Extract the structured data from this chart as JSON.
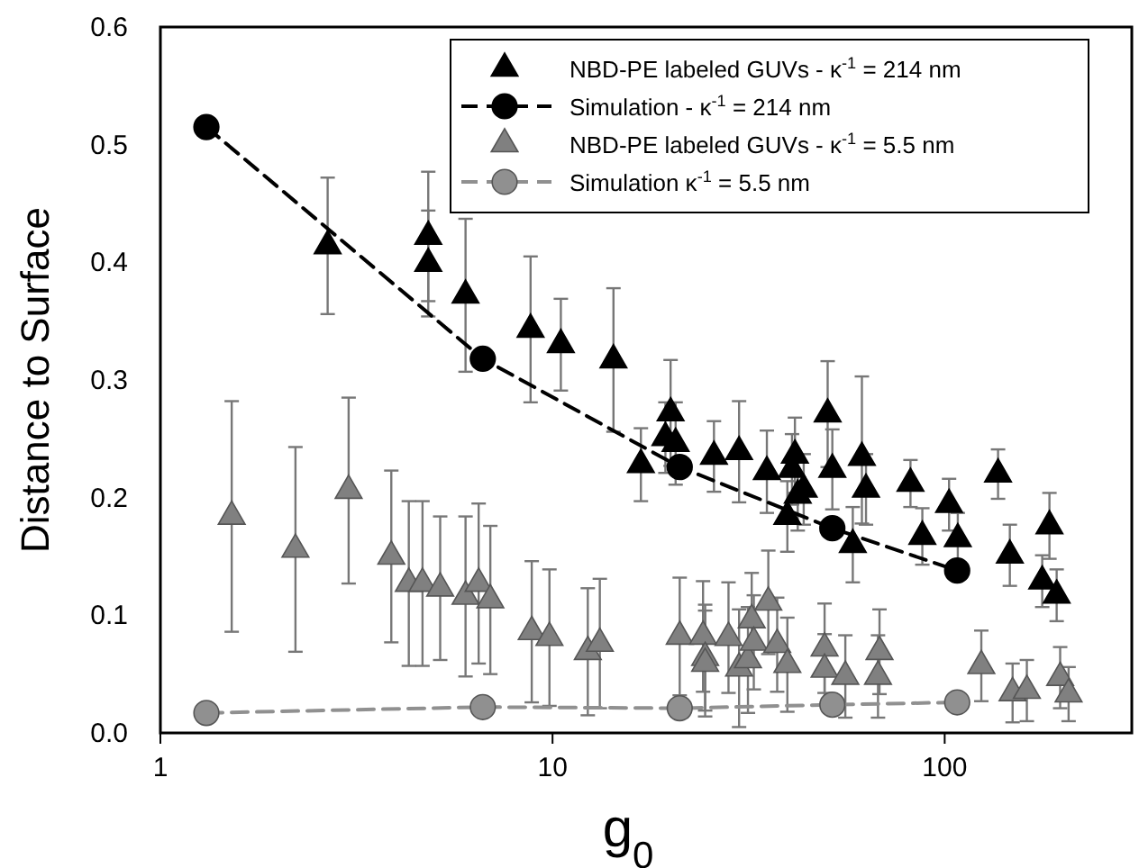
{
  "chart_data": {
    "type": "scatter",
    "xlabel": "g$_{0}$",
    "ylabel": "Distance to Surface",
    "log": "x",
    "xlim": [
      1,
      300
    ],
    "xticks": [
      1,
      10,
      100
    ],
    "ylim": [
      0,
      0.6
    ],
    "yticks": [
      {
        "value": 0,
        "label": "0.0"
      },
      {
        "value": 0.1,
        "label": "0.1"
      },
      {
        "value": 0.2,
        "label": "0.2"
      },
      {
        "value": 0.3,
        "label": "0.3"
      },
      {
        "value": 0.4,
        "label": "0.4"
      },
      {
        "value": 0.5,
        "label": "0.5"
      },
      {
        "value": 0.6,
        "label": "0.6"
      }
    ],
    "grid": false,
    "legend": "top right",
    "series": [
      {
        "name": "NBD-PE labeled GUVs - κ$^{-1}$ = 214 nm",
        "marker": "triangle",
        "color": "#000000",
        "x": [
          2.67,
          4.82,
          4.82,
          6.0,
          8.79,
          10.5,
          14.3,
          16.8,
          19.4,
          20.0,
          20.6,
          25.8,
          29.9,
          35.2,
          39.7,
          40.8,
          41.5,
          42.2,
          43.7,
          50.3,
          51.7,
          58.3,
          61.5,
          63.0,
          81.8,
          87.7,
          102.6,
          108,
          136.8,
          146.6,
          177.3,
          185,
          193
        ],
        "values": [
          0.414,
          0.422,
          0.399,
          0.372,
          0.343,
          0.33,
          0.317,
          0.228,
          0.251,
          0.272,
          0.246,
          0.235,
          0.239,
          0.222,
          0.184,
          0.224,
          0.236,
          0.202,
          0.207,
          0.271,
          0.224,
          0.16,
          0.234,
          0.207,
          0.212,
          0.167,
          0.194,
          0.165,
          0.22,
          0.151,
          0.129,
          0.176,
          0.117
        ],
        "errors": [
          0.058,
          0.055,
          0.045,
          0.065,
          0.062,
          0.039,
          0.061,
          0.031,
          0.03,
          0.045,
          0.035,
          0.03,
          0.043,
          0.035,
          0.03,
          0.03,
          0.032,
          0.03,
          0.03,
          0.045,
          0.034,
          0.032,
          [
            0.178,
            0.303
          ],
          0.03,
          0.02,
          0.024,
          0.022,
          0.022,
          0.021,
          0.026,
          0.022,
          0.028,
          0.022
        ]
      },
      {
        "name": "Simulation - κ$^{-1}$ = 214 nm",
        "type": "line",
        "marker": "circle",
        "line_style": "dashed",
        "color": "#000000",
        "x": [
          1.31,
          6.64,
          21.1,
          51.7,
          107.6
        ],
        "values": [
          0.515,
          0.318,
          0.226,
          0.174,
          0.138
        ]
      },
      {
        "name": "NBD-PE labeled GUVs - κ$^{-1}$ = 5.5 nm",
        "marker": "triangle",
        "color": "#808080",
        "x": [
          1.52,
          2.21,
          3.02,
          3.88,
          4.3,
          4.66,
          5.17,
          6.0,
          6.48,
          6.94,
          8.85,
          9.82,
          12.3,
          13.2,
          21.1,
          24.2,
          24.5,
          24.5,
          28.1,
          29.9,
          31.5,
          32.2,
          32.6,
          35.5,
          37.4,
          39.7,
          49.4,
          49.4,
          55.8,
          68.2,
          67.6,
          124,
          149,
          162,
          197,
          207
        ],
        "values": [
          0.184,
          0.156,
          0.206,
          0.15,
          0.127,
          0.127,
          0.123,
          0.116,
          0.127,
          0.113,
          0.086,
          0.081,
          0.069,
          0.076,
          0.082,
          0.082,
          0.064,
          0.059,
          0.081,
          0.055,
          0.062,
          0.096,
          0.077,
          0.111,
          0.075,
          0.058,
          0.072,
          0.054,
          0.048,
          0.069,
          0.048,
          0.057,
          0.034,
          0.036,
          0.047,
          0.033
        ],
        "errors": [
          0.098,
          0.087,
          0.079,
          0.073,
          0.07,
          0.07,
          0.061,
          0.068,
          0.068,
          0.063,
          0.06,
          0.058,
          0.054,
          0.055,
          0.05,
          0.047,
          0.045,
          0.045,
          0.047,
          0.05,
          0.045,
          0.04,
          0.04,
          0.044,
          0.04,
          0.04,
          0.038,
          0.03,
          0.035,
          0.036,
          0.035,
          0.03,
          0.025,
          0.026,
          0.026,
          0.023
        ]
      },
      {
        "name": "Simulation κ$^{-1}$ = 5.5 nm",
        "type": "line",
        "marker": "circle",
        "line_style": "dashed",
        "color": "#909090",
        "x": [
          1.31,
          6.64,
          21.1,
          51.7,
          107.6
        ],
        "values": [
          0.017,
          0.022,
          0.021,
          0.024,
          0.026
        ]
      }
    ]
  }
}
